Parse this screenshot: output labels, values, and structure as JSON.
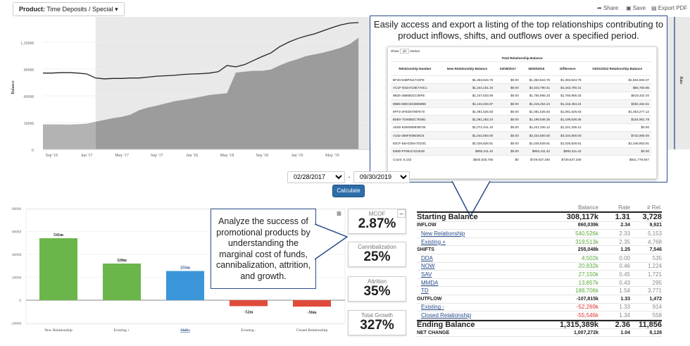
{
  "toolbar": {
    "product_label": "Product:",
    "product_value": "Time Deposits / Special",
    "share": "Share",
    "save": "Save",
    "export": "Export PDF"
  },
  "top_chart": {
    "type": "area",
    "ylabel": "Balance",
    "y2label": "Rate",
    "yticks": [
      "0",
      "300M",
      "600M",
      "900M",
      "1,200M"
    ],
    "xticks": [
      "Sep '16",
      "Jan '17",
      "May '17",
      "Sep '17",
      "Jan '18",
      "May '18",
      "Sep '18",
      "Jan '19",
      "May '19"
    ],
    "selection_start": "2017-02",
    "months": [
      "2016-08",
      "2016-09",
      "2016-10",
      "2016-11",
      "2016-12",
      "2017-01",
      "2017-02",
      "2017-03",
      "2017-04",
      "2017-05",
      "2017-06",
      "2017-07",
      "2017-08",
      "2017-09",
      "2017-10",
      "2017-11",
      "2017-12",
      "2018-01",
      "2018-02",
      "2018-03",
      "2018-04",
      "2018-05",
      "2018-06",
      "2018-07",
      "2018-08",
      "2018-09",
      "2018-10",
      "2018-11",
      "2018-12",
      "2019-01",
      "2019-02",
      "2019-03",
      "2019-04",
      "2019-05",
      "2019-06",
      "2019-07",
      "2019-08"
    ],
    "line": [
      855,
      855,
      860,
      860,
      855,
      845,
      800,
      790,
      795,
      795,
      800,
      800,
      810,
      820,
      825,
      830,
      840,
      845,
      848,
      855,
      870,
      940,
      925,
      950,
      995,
      1040,
      1080,
      1150,
      1200,
      1240,
      1270,
      1295,
      1330,
      1365,
      1395,
      1415,
      1420
    ],
    "area": [
      280,
      280,
      280,
      278,
      282,
      288,
      310,
      330,
      350,
      365,
      390,
      440,
      470,
      490,
      515,
      540,
      555,
      570,
      590,
      610,
      620,
      630,
      860,
      870,
      880,
      880,
      895,
      940,
      980,
      1010,
      1045,
      1065,
      1085,
      1110,
      1140,
      1180,
      1250
    ]
  },
  "popup": {
    "message": "Easily access and export a listing of the top relationships contributing to product inflows, shifts, and outflows over a specified period.",
    "show": "Show",
    "entries_value": "10",
    "entries": "entries",
    "group_header": "Total Relationship Balance",
    "columns": [
      "Relationship Number",
      "New Relationship Balance",
      "02/28/2017",
      "09/30/2019",
      "Difference",
      "03/31/2022 Relationship Balance"
    ],
    "rows": [
      [
        "BF40-63BF81172SFE",
        "$1,363,643.76",
        "$0.00",
        "$1,363,643.76",
        "$1,363,643.76",
        "$1,664,663.37"
      ],
      [
        "AC1F-E534718E7A0C1",
        "$1,344,151.34",
        "$0.00",
        "$4,343,790.41",
        "$4,343,790.41",
        "$65,750.85"
      ],
      [
        "9B25-26B6B31C69FE",
        "$1,247,633.59",
        "$0.00",
        "$1,755,965.33",
        "$1,755,965.33",
        "$619,322.40"
      ],
      [
        "89B5-65ECBCBB5B65",
        "$1,133,334.87",
        "$0.00",
        "$1,415,454.24",
        "$1,415,454.24",
        "$354,332.51"
      ],
      [
        "9FF3-4FED6790FE70",
        "$1,081,625.83",
        "$0.00",
        "$1,081,625.83",
        "$1,081,625.83",
        "$1,053,277.12"
      ],
      [
        "B0E0-7D46BDC7E681",
        "$1,081,282.24",
        "$0.00",
        "$1,199,636.35",
        "$1,199,636.35",
        "$154,901.78"
      ],
      [
        "AE60-8250589935F36",
        "$1,072,441.10",
        "$0.00",
        "$1,221,335.12",
        "$1,221,335.12",
        "$0.00"
      ],
      [
        "A242-486F009E08C6",
        "$1,042,650.00",
        "$0.00",
        "$3,334,800.00",
        "$3,334,800.00",
        "$732,900.00"
      ],
      [
        "83CF-E8AD35A7D23C",
        "$1,026,828.81",
        "$0.00",
        "$1,026,828.81",
        "$1,026,828.81",
        "$1,046,853.91"
      ],
      [
        "838D-FF851C421E28",
        "$993,411.42",
        "$0.00",
        "$993,411.42",
        "$993,411.42",
        "$0.00"
      ]
    ],
    "footer": [
      "Count: 5,153",
      "$540,525,756",
      "$0",
      "$729,637,346",
      "$729,637,346",
      "$541,779,947"
    ]
  },
  "dates": {
    "start": "02/28/2017",
    "end": "09/30/2019",
    "sep": "-",
    "calculate": "Calculate"
  },
  "bar_chart": {
    "type": "bar",
    "categories": [
      "New Relationship",
      "Existing +",
      "Shifts",
      "Existing -",
      "Closed Relationship"
    ],
    "values": [
      541,
      320,
      255,
      -52,
      -56
    ],
    "labels": [
      "541m",
      "320m",
      "255m",
      "-52m",
      "-56m"
    ],
    "colors": [
      "#6ab64a",
      "#6ab64a",
      "#3a96d8",
      "#e04a3a",
      "#e04a3a"
    ],
    "yticks": [
      "-200M",
      "0",
      "200M",
      "400M",
      "600M",
      "800M"
    ],
    "ylim": [
      -200,
      800
    ]
  },
  "analyze": {
    "message": "Analyze the success of promotional products by understanding the marginal cost of funds, cannibalization, attrition, and growth."
  },
  "metrics": [
    {
      "label": "MCOF",
      "value": "2.87%"
    },
    {
      "label": "Cannibalization",
      "value": "25%"
    },
    {
      "label": "Attrition",
      "value": "35%"
    },
    {
      "label": "Total Growth",
      "value": "327%"
    }
  ],
  "flow": {
    "headers": [
      "",
      "Balance",
      "Rate",
      "# Rel."
    ],
    "starting": [
      "Starting Balance",
      "308,117k",
      "1.31",
      "3,728"
    ],
    "inflow": [
      "INFLOW",
      "860,039k",
      "2.34",
      "9,921"
    ],
    "inflow_items": [
      [
        "New Relationship",
        "540,526k",
        "2.33",
        "5,153"
      ],
      [
        "Existing +",
        "319,513k",
        "2.35",
        "4,768"
      ]
    ],
    "shifts": [
      "SHIFTS",
      "255,048k",
      "1.25",
      "7,546"
    ],
    "shift_items": [
      [
        "DDA",
        "4,502k",
        "0.00",
        "535"
      ],
      [
        "NOW",
        "20,832k",
        "0.46",
        "1,224"
      ],
      [
        "SAV",
        "27,150k",
        "0.45",
        "1,721"
      ],
      [
        "MMDA",
        "13,857k",
        "0.43",
        "295"
      ],
      [
        "TD",
        "188,706k",
        "1.54",
        "3,771"
      ]
    ],
    "outflow": [
      "OUTFLOW",
      "-107,815k",
      "1.33",
      "1,472"
    ],
    "outflow_items": [
      [
        "Existing -",
        "-52,269k",
        "1.33",
        "914"
      ],
      [
        "Closed Relationship",
        "-55,546k",
        "1.34",
        "558"
      ]
    ],
    "ending": [
      "Ending Balance",
      "1,315,389k",
      "2.36",
      "11,856"
    ],
    "net": [
      "NET CHANGE",
      "1,007,272k",
      "1.04",
      "8,128"
    ]
  }
}
